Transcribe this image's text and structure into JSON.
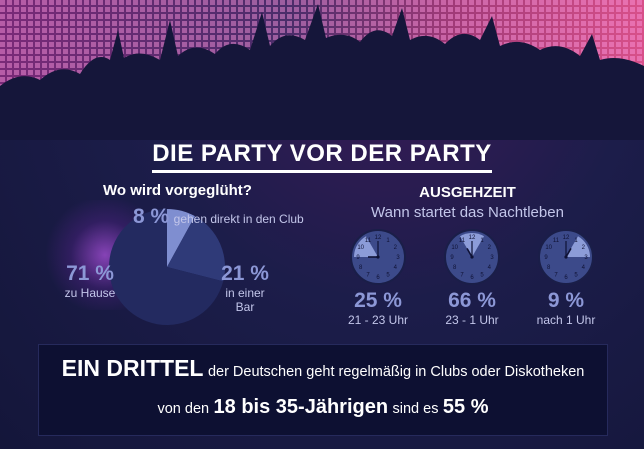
{
  "title": "DIE PARTY VOR DER PARTY",
  "left": {
    "question": "Wo wird vorgeglüht?",
    "slices": [
      {
        "value_label": "71 %",
        "text": "zu Hause"
      },
      {
        "value_label": "21 %",
        "text": "in einer Bar"
      },
      {
        "value_label": "8 %",
        "text": "gehen direkt in den Club"
      }
    ]
  },
  "right": {
    "heading": "AUSGEHZEIT",
    "subheading": "Wann startet das Nachtleben",
    "clocks": [
      {
        "value_label": "25 %",
        "caption": "21 - 23 Uhr",
        "from_hour": 9,
        "to_hour": 11
      },
      {
        "value_label": "66 %",
        "caption": "23 - 1 Uhr",
        "from_hour": 11,
        "to_hour": 13
      },
      {
        "value_label": "9 %",
        "caption": "nach 1 Uhr",
        "from_hour": 13,
        "to_hour": 15
      }
    ]
  },
  "banner": {
    "line1_bold": "EIN DRITTEL",
    "line1_text": "der Deutschen geht regelmäßig in Clubs oder Diskotheken",
    "line2_pre": "von den",
    "line2_bold": "18 bis 35-Jährigen",
    "line2_mid": "sind es",
    "line2_pct": "55 %"
  },
  "colors": {
    "background": "#14163a",
    "pie_home": "#232a60",
    "pie_bar": "#2f3a78",
    "pie_club": "#7f8ed0",
    "clock_face": "#3c4a8a",
    "clock_highlight": "#8c9cd8",
    "accent_text": "#8c97d6"
  },
  "chart_data": [
    {
      "type": "pie",
      "title": "Wo wird vorgeglüht?",
      "categories": [
        "zu Hause",
        "in einer Bar",
        "gehen direkt in den Club"
      ],
      "values": [
        71,
        21,
        8
      ],
      "unit": "%"
    },
    {
      "type": "bar",
      "title": "AUSGEHZEIT",
      "subtitle": "Wann startet das Nachtleben",
      "categories": [
        "21 - 23 Uhr",
        "23 - 1 Uhr",
        "nach 1 Uhr"
      ],
      "values": [
        25,
        66,
        9
      ],
      "unit": "%"
    }
  ]
}
